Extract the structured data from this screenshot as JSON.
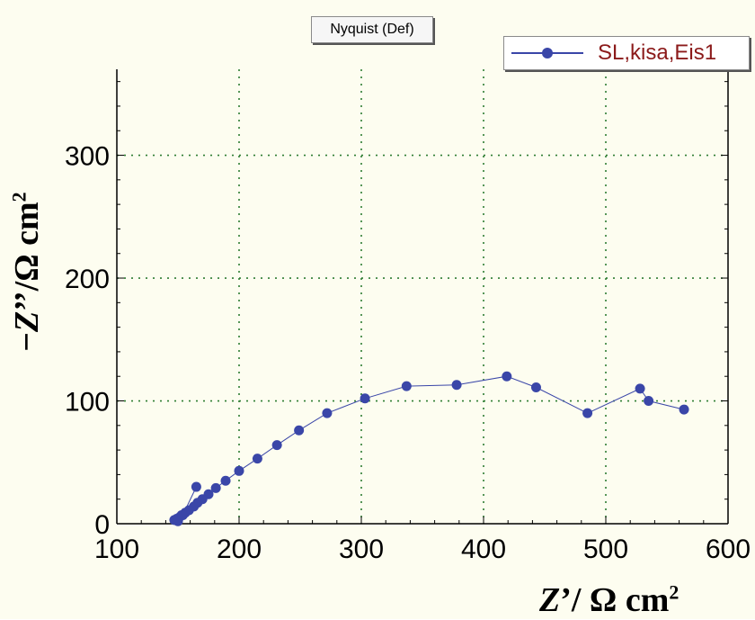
{
  "chart_data": {
    "type": "scatter",
    "title": "Nyquist (Def)",
    "xlabel": {
      "italic": "Z",
      "rest": "’/ Ω cm",
      "sup": "2"
    },
    "ylabel": {
      "prefix": "−",
      "italic": "Z",
      "rest": "’’/Ω cm",
      "sup": "2"
    },
    "xlim": [
      100,
      600
    ],
    "ylim": [
      0,
      370
    ],
    "xticks": [
      100,
      200,
      300,
      400,
      500,
      600
    ],
    "yticks": [
      0,
      100,
      200,
      300
    ],
    "grid": true,
    "legend_position": "top-right",
    "series": [
      {
        "name": "SL,kisa,Eis1",
        "color": "#3a46a8",
        "x": [
          564,
          535,
          528,
          485,
          443,
          419,
          378,
          337,
          303,
          272,
          249,
          231,
          215,
          200,
          189,
          181,
          175,
          170,
          166,
          163,
          159,
          156,
          153,
          151,
          149,
          148,
          147,
          150,
          154,
          165
        ],
        "y": [
          93,
          100,
          110,
          90,
          111,
          120,
          113,
          112,
          102,
          90,
          76,
          64,
          53,
          43,
          35,
          29,
          24,
          20,
          17,
          14,
          11,
          9,
          7,
          5,
          4,
          3,
          3,
          2,
          7,
          30
        ]
      }
    ]
  }
}
